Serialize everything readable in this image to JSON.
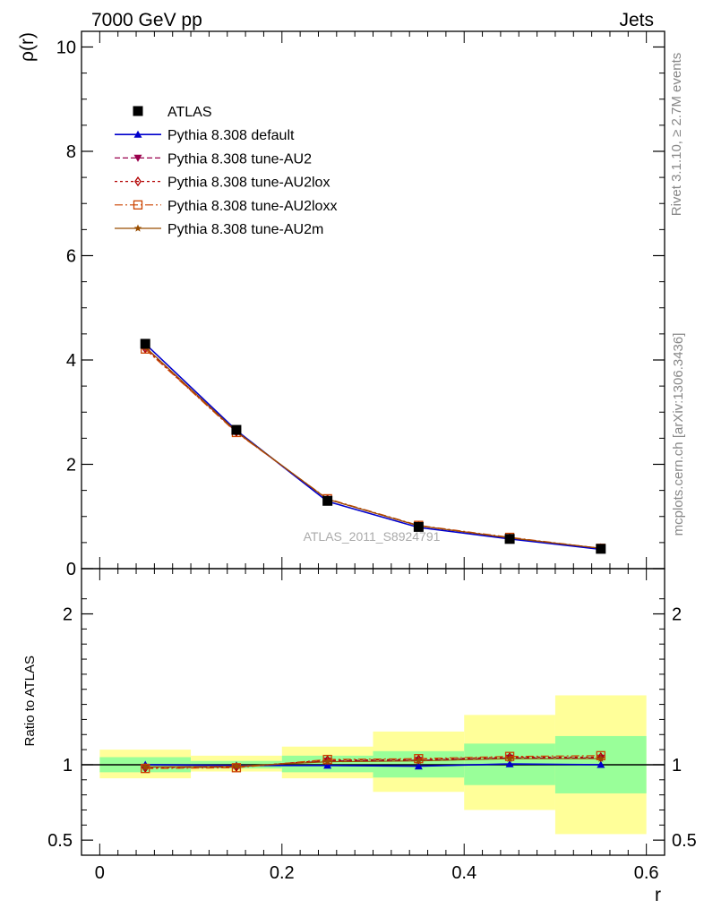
{
  "header": {
    "left": "7000 GeV pp",
    "right": "Jets"
  },
  "side": {
    "rivet": "Rivet 3.1.10, ≥ 2.7M events",
    "source": "mcplots.cern.ch [arXiv:1306.3436]"
  },
  "watermark": "ATLAS_2011_S8924791",
  "colors": {
    "data": "#000000",
    "default": "#0000cc",
    "au2": "#99004d",
    "au2lox": "#b30000",
    "au2loxx": "#cc4400",
    "au2m": "#994d00",
    "band_inner": "#99ff99",
    "band_outer": "#ffff99"
  },
  "chart_data": [
    {
      "type": "line",
      "ylabel": "ρ(r)",
      "xlim": [
        -0.02,
        0.62
      ],
      "ylim": [
        0,
        10.3
      ],
      "y_ticks": [
        "0",
        "2",
        "4",
        "6",
        "8",
        "10"
      ],
      "x": [
        0.05,
        0.15,
        0.25,
        0.35,
        0.45,
        0.55
      ],
      "x_bin_edges": [
        0.0,
        0.1,
        0.2,
        0.3,
        0.4,
        0.5,
        0.6
      ],
      "legend_position": "top-left",
      "series": [
        {
          "name": "ATLAS",
          "key": "data",
          "marker": "square",
          "dash": "",
          "values": [
            4.31,
            2.66,
            1.3,
            0.8,
            0.57,
            0.38
          ]
        },
        {
          "name": "Pythia 8.308 default",
          "key": "default",
          "marker": "triangle-up",
          "dash": "",
          "values": [
            4.31,
            2.65,
            1.29,
            0.79,
            0.57,
            0.37
          ]
        },
        {
          "name": "Pythia 8.308 tune-AU2",
          "key": "au2",
          "marker": "triangle-down",
          "dash": "6,3",
          "values": [
            4.24,
            2.62,
            1.33,
            0.82,
            0.59,
            0.39
          ]
        },
        {
          "name": "Pythia 8.308 tune-AU2lox",
          "key": "au2lox",
          "marker": "diamond-open",
          "dash": "3,3",
          "values": [
            4.22,
            2.62,
            1.33,
            0.82,
            0.59,
            0.39
          ]
        },
        {
          "name": "Pythia 8.308 tune-AU2loxx",
          "key": "au2loxx",
          "marker": "square-open",
          "dash": "9,3,2,3",
          "values": [
            4.21,
            2.61,
            1.34,
            0.83,
            0.6,
            0.39
          ]
        },
        {
          "name": "Pythia 8.308 tune-AU2m",
          "key": "au2m",
          "marker": "star",
          "dash": "",
          "values": [
            4.25,
            2.63,
            1.33,
            0.82,
            0.59,
            0.39
          ]
        }
      ]
    },
    {
      "type": "line",
      "xlabel": "r",
      "ylabel": "Ratio to ATLAS",
      "xlim": [
        -0.02,
        0.62
      ],
      "ylim": [
        0.4,
        2.3
      ],
      "x_ticks": [
        "0",
        "0.2",
        "0.4",
        "0.6"
      ],
      "y_ticks": [
        "0.5",
        "1",
        "2"
      ],
      "x": [
        0.05,
        0.15,
        0.25,
        0.35,
        0.45,
        0.55
      ],
      "x_bin_edges": [
        0.0,
        0.1,
        0.2,
        0.3,
        0.4,
        0.5,
        0.6
      ],
      "uncertainty_inner": {
        "low": [
          0.95,
          0.975,
          0.95,
          0.915,
          0.865,
          0.81
        ],
        "high": [
          1.05,
          1.025,
          1.06,
          1.09,
          1.14,
          1.19
        ]
      },
      "uncertainty_outer": {
        "low": [
          0.91,
          0.955,
          0.91,
          0.82,
          0.7,
          0.54
        ],
        "high": [
          1.1,
          1.06,
          1.12,
          1.22,
          1.33,
          1.46
        ]
      },
      "series": [
        {
          "key": "default",
          "marker": "triangle-up",
          "dash": "",
          "values": [
            1.0,
            0.995,
            0.995,
            0.99,
            1.005,
            1.0
          ]
        },
        {
          "key": "au2",
          "marker": "triangle-down",
          "dash": "6,3",
          "values": [
            0.985,
            0.985,
            1.025,
            1.03,
            1.045,
            1.045
          ]
        },
        {
          "key": "au2lox",
          "marker": "diamond-open",
          "dash": "3,3",
          "values": [
            0.98,
            0.985,
            1.03,
            1.035,
            1.05,
            1.05
          ]
        },
        {
          "key": "au2loxx",
          "marker": "square-open",
          "dash": "9,3,2,3",
          "values": [
            0.975,
            0.98,
            1.035,
            1.04,
            1.055,
            1.06
          ]
        },
        {
          "key": "au2m",
          "marker": "star",
          "dash": "",
          "values": [
            0.985,
            0.99,
            1.02,
            1.025,
            1.04,
            1.04
          ]
        }
      ]
    }
  ]
}
